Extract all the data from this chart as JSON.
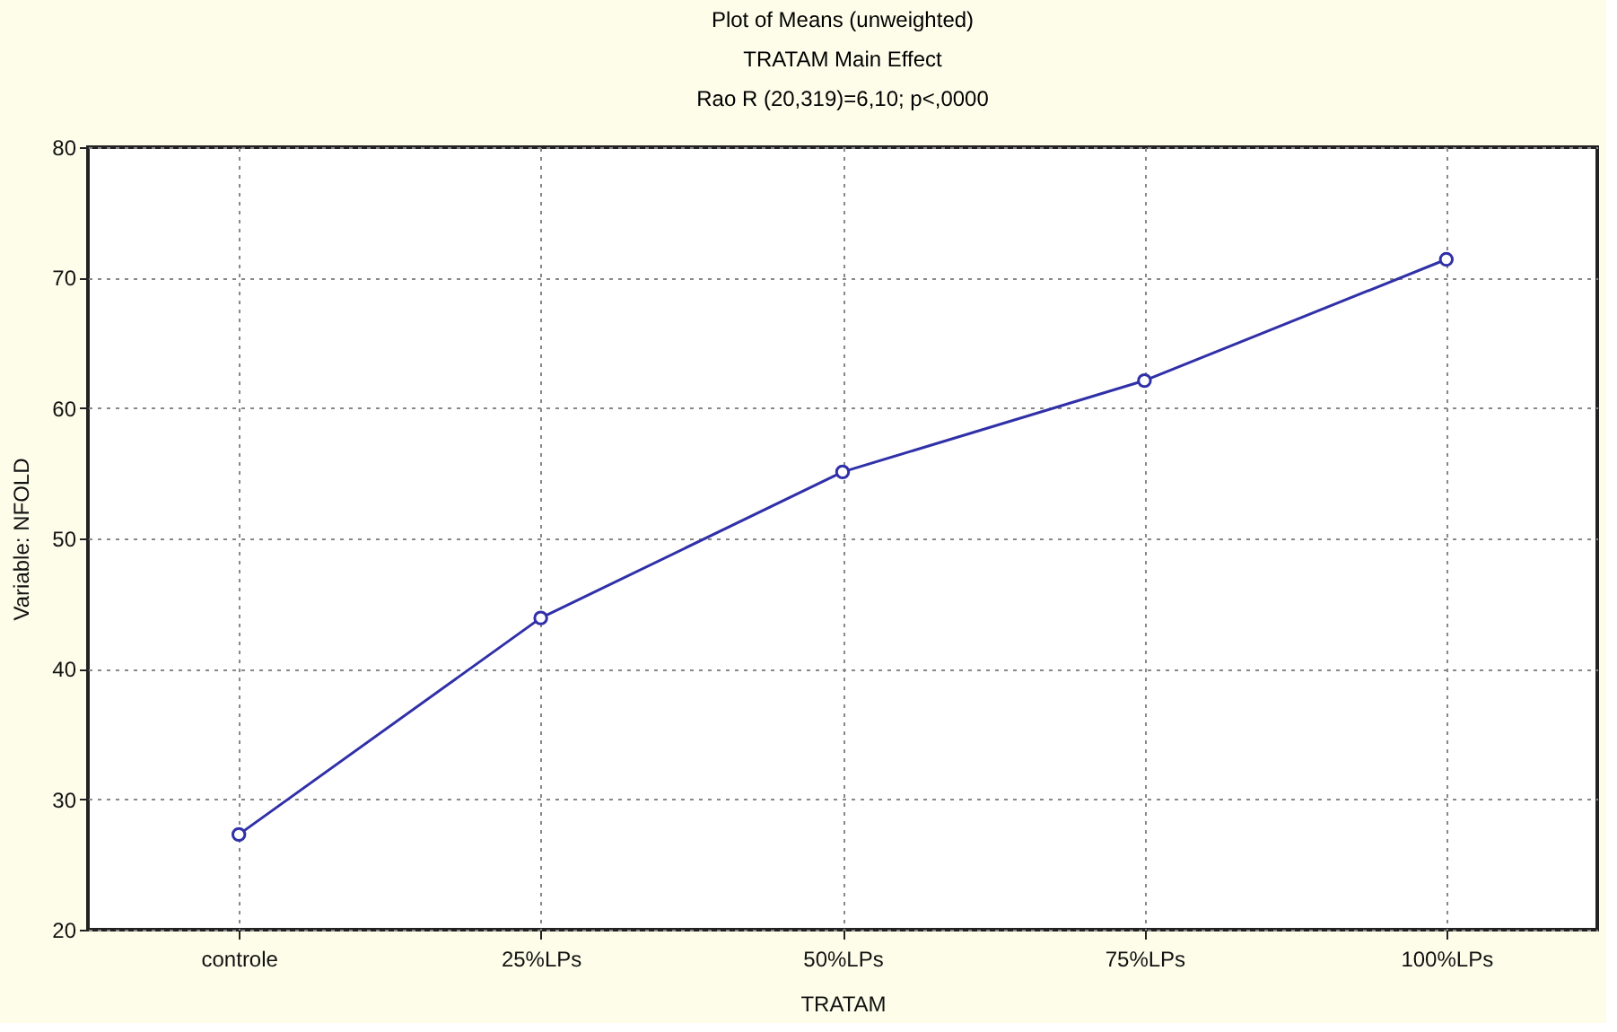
{
  "chart_data": {
    "type": "line",
    "title": [
      "Plot of Means (unweighted)",
      "TRATAM Main Effect",
      "Rao R (20,319)=6,10; p<,0000"
    ],
    "xlabel": "TRATAM",
    "ylabel": "Variable: NFOLD",
    "categories": [
      "controle",
      "25%LPs",
      "50%LPs",
      "75%LPs",
      "100%LPs"
    ],
    "series": [
      {
        "color": "#3030a8",
        "values": [
          27.3,
          43.9,
          55.1,
          62.1,
          71.4
        ]
      }
    ],
    "ylim": [
      20,
      80
    ],
    "yticks": [
      20,
      30,
      40,
      50,
      60,
      70,
      80
    ],
    "grid": true,
    "marker": "circle",
    "line_style": "solid"
  }
}
